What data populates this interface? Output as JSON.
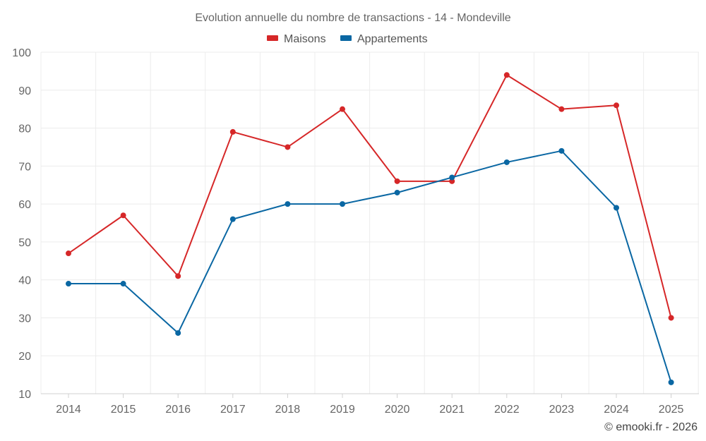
{
  "chart_data": {
    "type": "line",
    "title": "Evolution annuelle du nombre de transactions - 14 - Mondeville",
    "xlabel": "",
    "ylabel": "",
    "categories": [
      "2014",
      "2015",
      "2016",
      "2017",
      "2018",
      "2019",
      "2020",
      "2021",
      "2022",
      "2023",
      "2024",
      "2025"
    ],
    "ylim": [
      10,
      100
    ],
    "yticks": [
      10,
      20,
      30,
      40,
      50,
      60,
      70,
      80,
      90,
      100
    ],
    "grid": true,
    "legend_position": "top-center",
    "series": [
      {
        "name": "Maisons",
        "color": "#d62728",
        "values": [
          47,
          57,
          41,
          79,
          75,
          85,
          66,
          66,
          94,
          85,
          86,
          30
        ]
      },
      {
        "name": "Appartements",
        "color": "#0a67a3",
        "values": [
          39,
          39,
          26,
          56,
          60,
          60,
          63,
          67,
          71,
          74,
          59,
          13
        ]
      }
    ]
  },
  "footer": {
    "copyright": "© emooki.fr - 2026"
  }
}
